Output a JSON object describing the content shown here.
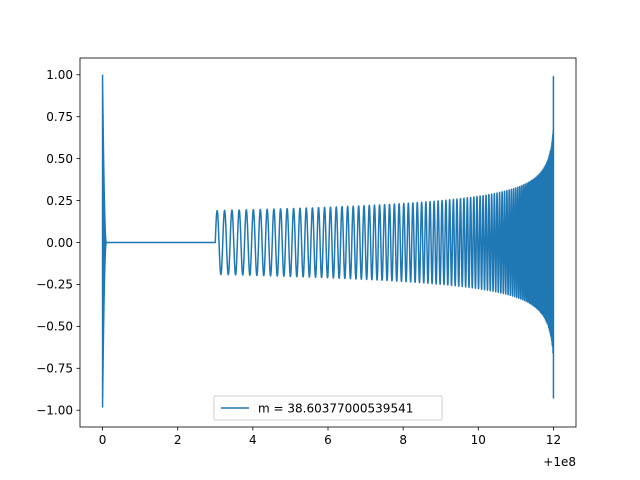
{
  "chart_data": {
    "type": "line",
    "title": "",
    "xlabel": "",
    "ylabel": "",
    "x_offset_label": "+1e8",
    "xlim": [
      -0.6,
      12.6
    ],
    "ylim": [
      -1.1,
      1.1
    ],
    "x_ticks": [
      0,
      2,
      4,
      6,
      8,
      10,
      12
    ],
    "x_tick_labels": [
      "0",
      "2",
      "4",
      "6",
      "8",
      "10",
      "12"
    ],
    "y_ticks": [
      1.0,
      0.75,
      0.5,
      0.25,
      0.0,
      -0.25,
      -0.5,
      -0.75,
      -1.0
    ],
    "y_tick_labels": [
      "1.00",
      "0.75",
      "0.50",
      "0.25",
      "0.00",
      "−0.25",
      "−0.50",
      "−0.75",
      "−1.00"
    ],
    "grid": false,
    "legend_position": "lower center",
    "series": [
      {
        "name": "m = 38.60377000539541",
        "color": "#1f77b4",
        "segments": [
          {
            "kind": "burst",
            "x_range": [
              0,
              0.1
            ],
            "amplitude_range": [
              1.0,
              0.0
            ],
            "description_values": {
              "max": 1.0,
              "min": -0.98
            }
          },
          {
            "kind": "flat",
            "x_range": [
              0.1,
              3.0
            ],
            "value": 0.0
          },
          {
            "kind": "oscillation",
            "x_range": [
              3.0,
              12.0
            ],
            "amplitude_start": 0.19,
            "amplitude_end": 1.0,
            "min_at_end": -0.93
          }
        ]
      }
    ]
  }
}
